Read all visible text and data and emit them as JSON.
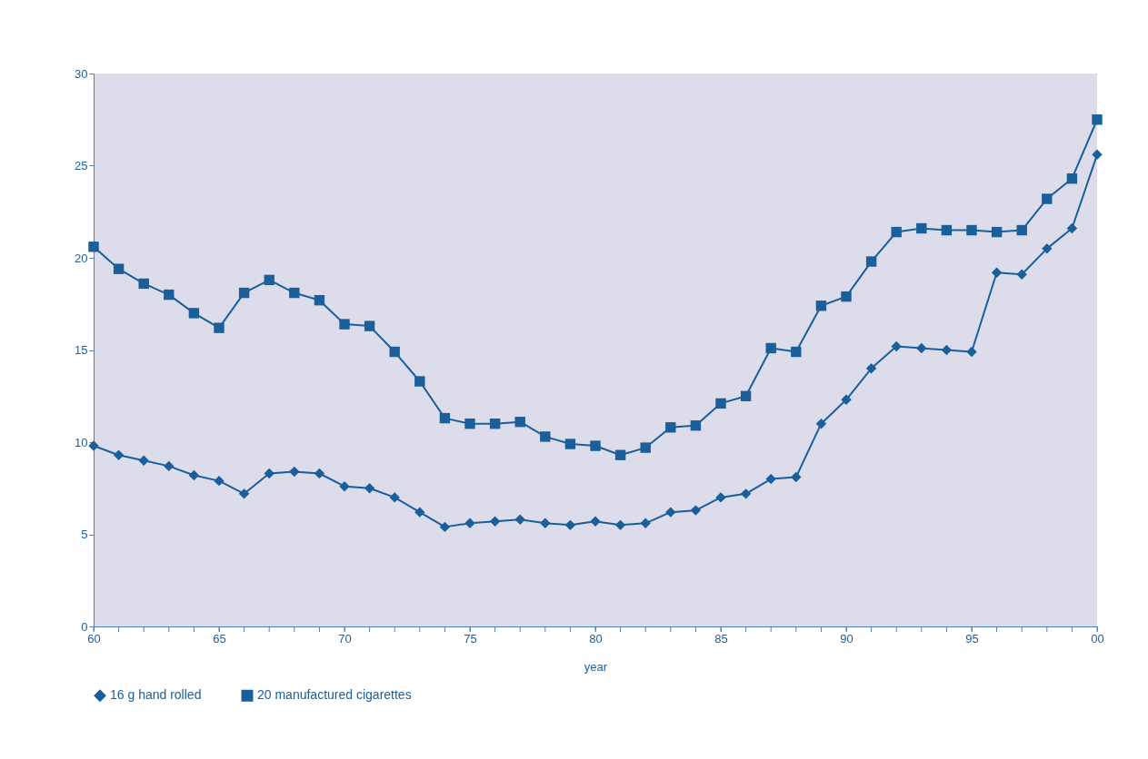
{
  "chart_data": {
    "type": "line",
    "xlabel": "year",
    "x": [
      1960,
      1961,
      1962,
      1963,
      1964,
      1965,
      1966,
      1967,
      1968,
      1969,
      1970,
      1971,
      1972,
      1973,
      1974,
      1975,
      1976,
      1977,
      1978,
      1979,
      1980,
      1981,
      1982,
      1983,
      1984,
      1985,
      1986,
      1987,
      1988,
      1989,
      1990,
      1991,
      1992,
      1993,
      1994,
      1995,
      1996,
      1997,
      1998,
      1999,
      2000
    ],
    "series": [
      {
        "name": "16 g hand rolled",
        "color": "#1a5e9a",
        "marker": "diamond",
        "values": [
          9.8,
          9.3,
          9.0,
          8.7,
          8.2,
          7.9,
          7.2,
          8.3,
          8.4,
          8.3,
          7.6,
          7.5,
          7.0,
          6.2,
          5.4,
          5.6,
          5.7,
          5.8,
          5.6,
          5.5,
          5.7,
          5.5,
          5.6,
          6.2,
          6.3,
          7.0,
          7.2,
          8.0,
          8.1,
          11.0,
          12.3,
          14.0,
          15.2,
          15.1,
          15.0,
          14.9,
          19.2,
          19.1,
          20.5,
          21.6,
          25.6
        ]
      },
      {
        "name": "20 manufactured cigarettes",
        "color": "#1a5e9a",
        "marker": "square",
        "values": [
          20.6,
          19.4,
          18.6,
          18.0,
          17.0,
          16.2,
          18.1,
          18.8,
          18.1,
          17.7,
          16.4,
          16.3,
          14.9,
          13.3,
          11.3,
          11.0,
          11.0,
          11.1,
          10.3,
          9.9,
          9.8,
          9.3,
          9.7,
          10.8,
          10.9,
          12.1,
          12.5,
          15.1,
          14.9,
          17.4,
          17.9,
          19.8,
          21.4,
          21.6,
          21.5,
          21.5,
          21.4,
          21.5,
          23.2,
          24.3,
          27.5
        ]
      }
    ],
    "xlim": [
      1960,
      2000
    ],
    "xticks": [
      {
        "value": 1960,
        "label": "60"
      },
      {
        "value": 1961,
        "label": null
      },
      {
        "value": 1962,
        "label": null
      },
      {
        "value": 1963,
        "label": null
      },
      {
        "value": 1964,
        "label": null
      },
      {
        "value": 1965,
        "label": "65"
      },
      {
        "value": 1966,
        "label": null
      },
      {
        "value": 1967,
        "label": null
      },
      {
        "value": 1968,
        "label": null
      },
      {
        "value": 1969,
        "label": null
      },
      {
        "value": 1970,
        "label": "70"
      },
      {
        "value": 1971,
        "label": null
      },
      {
        "value": 1972,
        "label": null
      },
      {
        "value": 1973,
        "label": null
      },
      {
        "value": 1974,
        "label": null
      },
      {
        "value": 1975,
        "label": "75"
      },
      {
        "value": 1976,
        "label": null
      },
      {
        "value": 1977,
        "label": null
      },
      {
        "value": 1978,
        "label": null
      },
      {
        "value": 1979,
        "label": null
      },
      {
        "value": 1980,
        "label": "80"
      },
      {
        "value": 1981,
        "label": null
      },
      {
        "value": 1982,
        "label": null
      },
      {
        "value": 1983,
        "label": null
      },
      {
        "value": 1984,
        "label": null
      },
      {
        "value": 1985,
        "label": "85"
      },
      {
        "value": 1986,
        "label": null
      },
      {
        "value": 1987,
        "label": null
      },
      {
        "value": 1988,
        "label": null
      },
      {
        "value": 1989,
        "label": null
      },
      {
        "value": 1990,
        "label": "90"
      },
      {
        "value": 1991,
        "label": null
      },
      {
        "value": 1992,
        "label": null
      },
      {
        "value": 1993,
        "label": null
      },
      {
        "value": 1994,
        "label": null
      },
      {
        "value": 1995,
        "label": "95"
      },
      {
        "value": 1996,
        "label": null
      },
      {
        "value": 1997,
        "label": null
      },
      {
        "value": 1998,
        "label": null
      },
      {
        "value": 1999,
        "label": null
      },
      {
        "value": 2000,
        "label": "00"
      }
    ],
    "ylim": [
      0,
      30
    ],
    "yticks": [
      0,
      5,
      10,
      15,
      20,
      25,
      30
    ],
    "grid": false,
    "legend": "bottom",
    "line_style": "solid"
  }
}
